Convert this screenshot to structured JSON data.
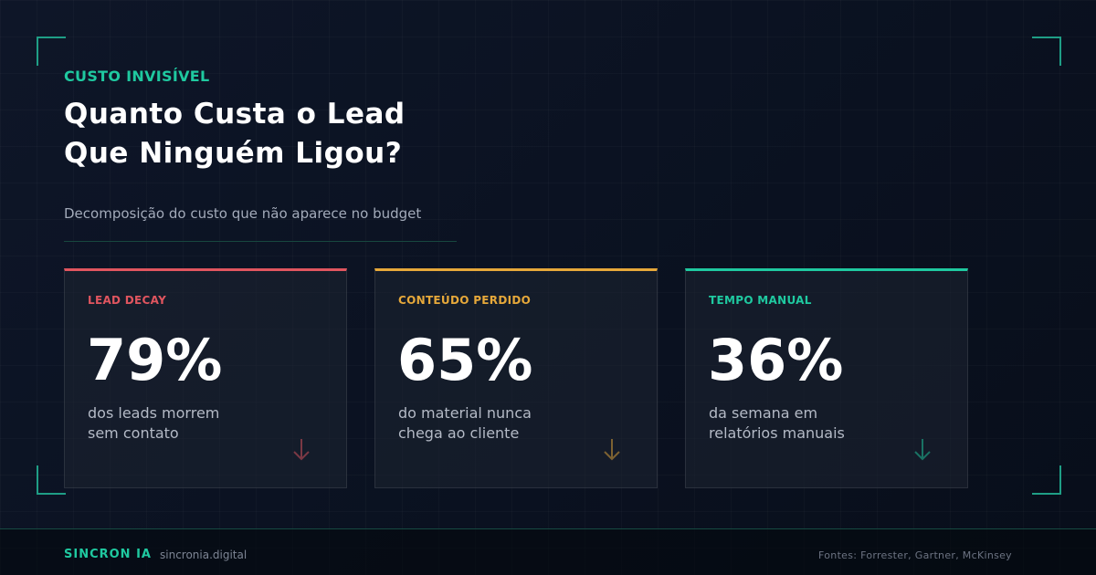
{
  "eyebrow": "CUSTO INVISÍVEL",
  "title": [
    "Quanto Custa o Lead",
    "Que Ninguém Ligou?"
  ],
  "subtitle": "Decomposição do custo que não aparece no budget",
  "cards": [
    {
      "label": "LEAD DECAY",
      "stat": "79%",
      "description": [
        "dos leads morrem",
        "sem contato"
      ],
      "accent": "#e0555f"
    },
    {
      "label": "CONTEÚDO PERDIDO",
      "stat": "65%",
      "description": [
        "do material nunca",
        "chega ao cliente"
      ],
      "accent": "#e6a83a"
    },
    {
      "label": "TEMPO MANUAL",
      "stat": "36%",
      "description": [
        "da semana em",
        "relatórios manuais"
      ],
      "accent": "#1fc9a0"
    }
  ],
  "footer": {
    "brand": "SINCRON IA",
    "url": "sincronia.digital",
    "sources": "Fontes: Forrester, Gartner, McKinsey"
  }
}
